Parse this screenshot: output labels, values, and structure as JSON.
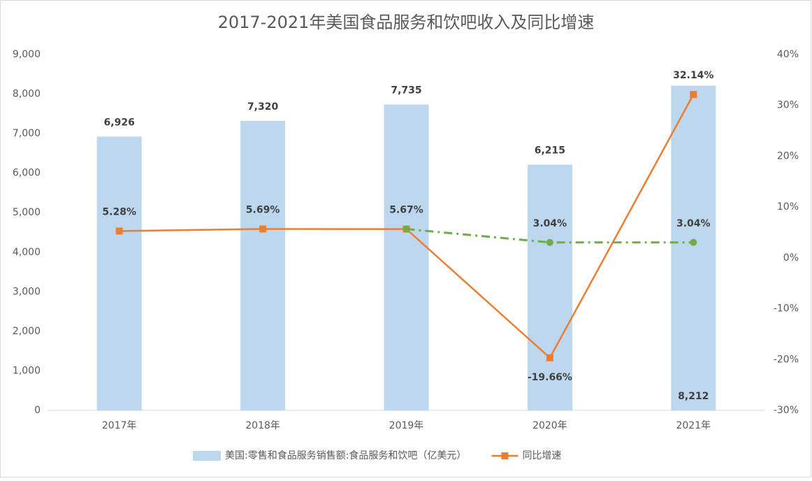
{
  "chart_data": {
    "type": "bar",
    "title": "2017-2021年美国食品服务和饮吧收入及同比增速",
    "categories": [
      "2017年",
      "2018年",
      "2019年",
      "2020年",
      "2021年"
    ],
    "series": [
      {
        "name": "美国:零售和食品服务销售额:食品服务和饮吧（亿美元）",
        "type": "bar",
        "color": "#bdd7ee",
        "values": [
          6926,
          7320,
          7735,
          6215,
          8212
        ],
        "value_labels": [
          "6,926",
          "7,320",
          "7,735",
          "6,215",
          "8,212"
        ]
      },
      {
        "name": "同比增速",
        "type": "line",
        "axis": "y2",
        "color": "#ed7d31",
        "marker": "square",
        "values": [
          5.28,
          5.69,
          5.67,
          -19.66,
          32.14
        ],
        "value_labels": [
          "5.28%",
          "5.69%",
          "5.67%",
          "-19.66%",
          "32.14%"
        ]
      },
      {
        "type": "line",
        "axis": "y2",
        "color": "#70ad47",
        "marker": "circle",
        "dashed": true,
        "values": [
          null,
          null,
          5.67,
          3.04,
          3.04
        ],
        "value_labels": [
          null,
          null,
          null,
          "3.04%",
          "3.04%"
        ]
      }
    ],
    "ylim": [
      0,
      9000
    ],
    "yticks": [
      0,
      {
        "value": 1000,
        "label": "1,000"
      },
      {
        "value": 2000,
        "label": "2,000"
      },
      {
        "value": 3000,
        "label": "3,000"
      },
      {
        "value": 4000,
        "label": "4,000"
      },
      {
        "value": 5000,
        "label": "5,000"
      },
      {
        "value": 6000,
        "label": "6,000"
      },
      {
        "value": 7000,
        "label": "7,000"
      },
      {
        "value": 8000,
        "label": "8,000"
      },
      {
        "value": 9000,
        "label": "9,000"
      }
    ],
    "y2lim": [
      -30,
      40
    ],
    "y2ticks": [
      {
        "value": -30,
        "label": "-30%"
      },
      {
        "value": -20,
        "label": "-20%"
      },
      {
        "value": -10,
        "label": "-10%"
      },
      {
        "value": 0,
        "label": "0%"
      },
      {
        "value": 10,
        "label": "10%"
      },
      {
        "value": 20,
        "label": "20%"
      },
      {
        "value": 30,
        "label": "30%"
      },
      {
        "value": 40,
        "label": "40%"
      }
    ],
    "legend": "bottom"
  }
}
